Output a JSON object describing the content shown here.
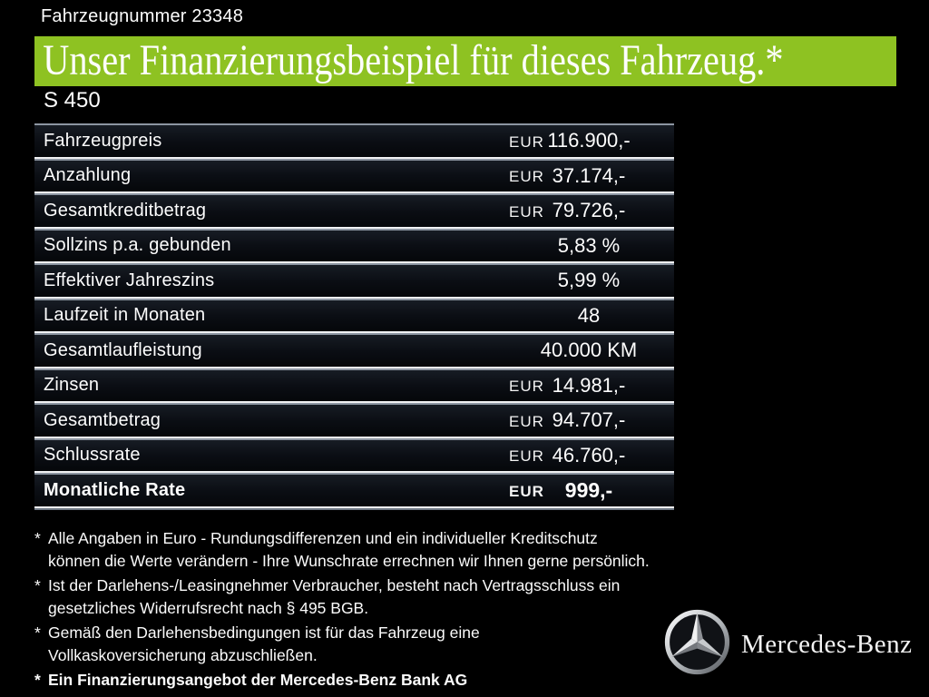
{
  "header": {
    "vehicle_number": "Fahrzeugnummer 23348",
    "title": "Unser Finanzierungsbeispiel für dieses Fahrzeug.*",
    "model": "S 450"
  },
  "colors": {
    "background": "#000000",
    "banner_green": "#8ec222",
    "text": "#fdfdfd",
    "separator_bright": "#f1f2f4",
    "separator_dim": "#8d96a2"
  },
  "table": {
    "rows": [
      {
        "label": "Fahrzeugpreis",
        "currency": "EUR",
        "value": "116.900,-",
        "bold": false
      },
      {
        "label": "Anzahlung",
        "currency": "EUR",
        "value": "37.174,-",
        "bold": false
      },
      {
        "label": "Gesamtkreditbetrag",
        "currency": "EUR",
        "value": "79.726,-",
        "bold": false
      },
      {
        "label": "Sollzins p.a. gebunden",
        "currency": "",
        "value": "5,83 %",
        "bold": false
      },
      {
        "label": "Effektiver Jahreszins",
        "currency": "",
        "value": "5,99 %",
        "bold": false
      },
      {
        "label": "Laufzeit in Monaten",
        "currency": "",
        "value": "48",
        "bold": false
      },
      {
        "label": "Gesamtlaufleistung",
        "currency": "",
        "value": "40.000 KM",
        "bold": false
      },
      {
        "label": "Zinsen",
        "currency": "EUR",
        "value": "14.981,-",
        "bold": false
      },
      {
        "label": "Gesamtbetrag",
        "currency": "EUR",
        "value": "94.707,-",
        "bold": false
      },
      {
        "label": "Schlussrate",
        "currency": "EUR",
        "value": "46.760,-",
        "bold": false
      },
      {
        "label": "Monatliche Rate",
        "currency": "EUR",
        "value": "999,-",
        "bold": true
      }
    ]
  },
  "footnotes": [
    {
      "marker": "*",
      "bold": false,
      "lines": [
        "Alle Angaben in Euro - Rundungsdifferenzen und ein individueller Kreditschutz",
        "können die Werte verändern - Ihre Wunschrate errechnen wir Ihnen gerne persönlich."
      ]
    },
    {
      "marker": "*",
      "bold": false,
      "lines": [
        "Ist der Darlehens-/Leasingnehmer Verbraucher, besteht nach Vertragsschluss ein",
        "gesetzliches Widerrufsrecht nach § 495 BGB."
      ]
    },
    {
      "marker": "*",
      "bold": false,
      "lines": [
        "Gemäß den Darlehensbedingungen ist für das Fahrzeug eine",
        "Vollkaskoversicherung abzuschließen."
      ]
    },
    {
      "marker": "*",
      "bold": true,
      "lines": [
        "Ein Finanzierungsangebot der Mercedes-Benz Bank AG"
      ]
    }
  ],
  "brand": {
    "logo_icon": "mercedes-star-icon",
    "wordmark": "Mercedes-Benz"
  }
}
